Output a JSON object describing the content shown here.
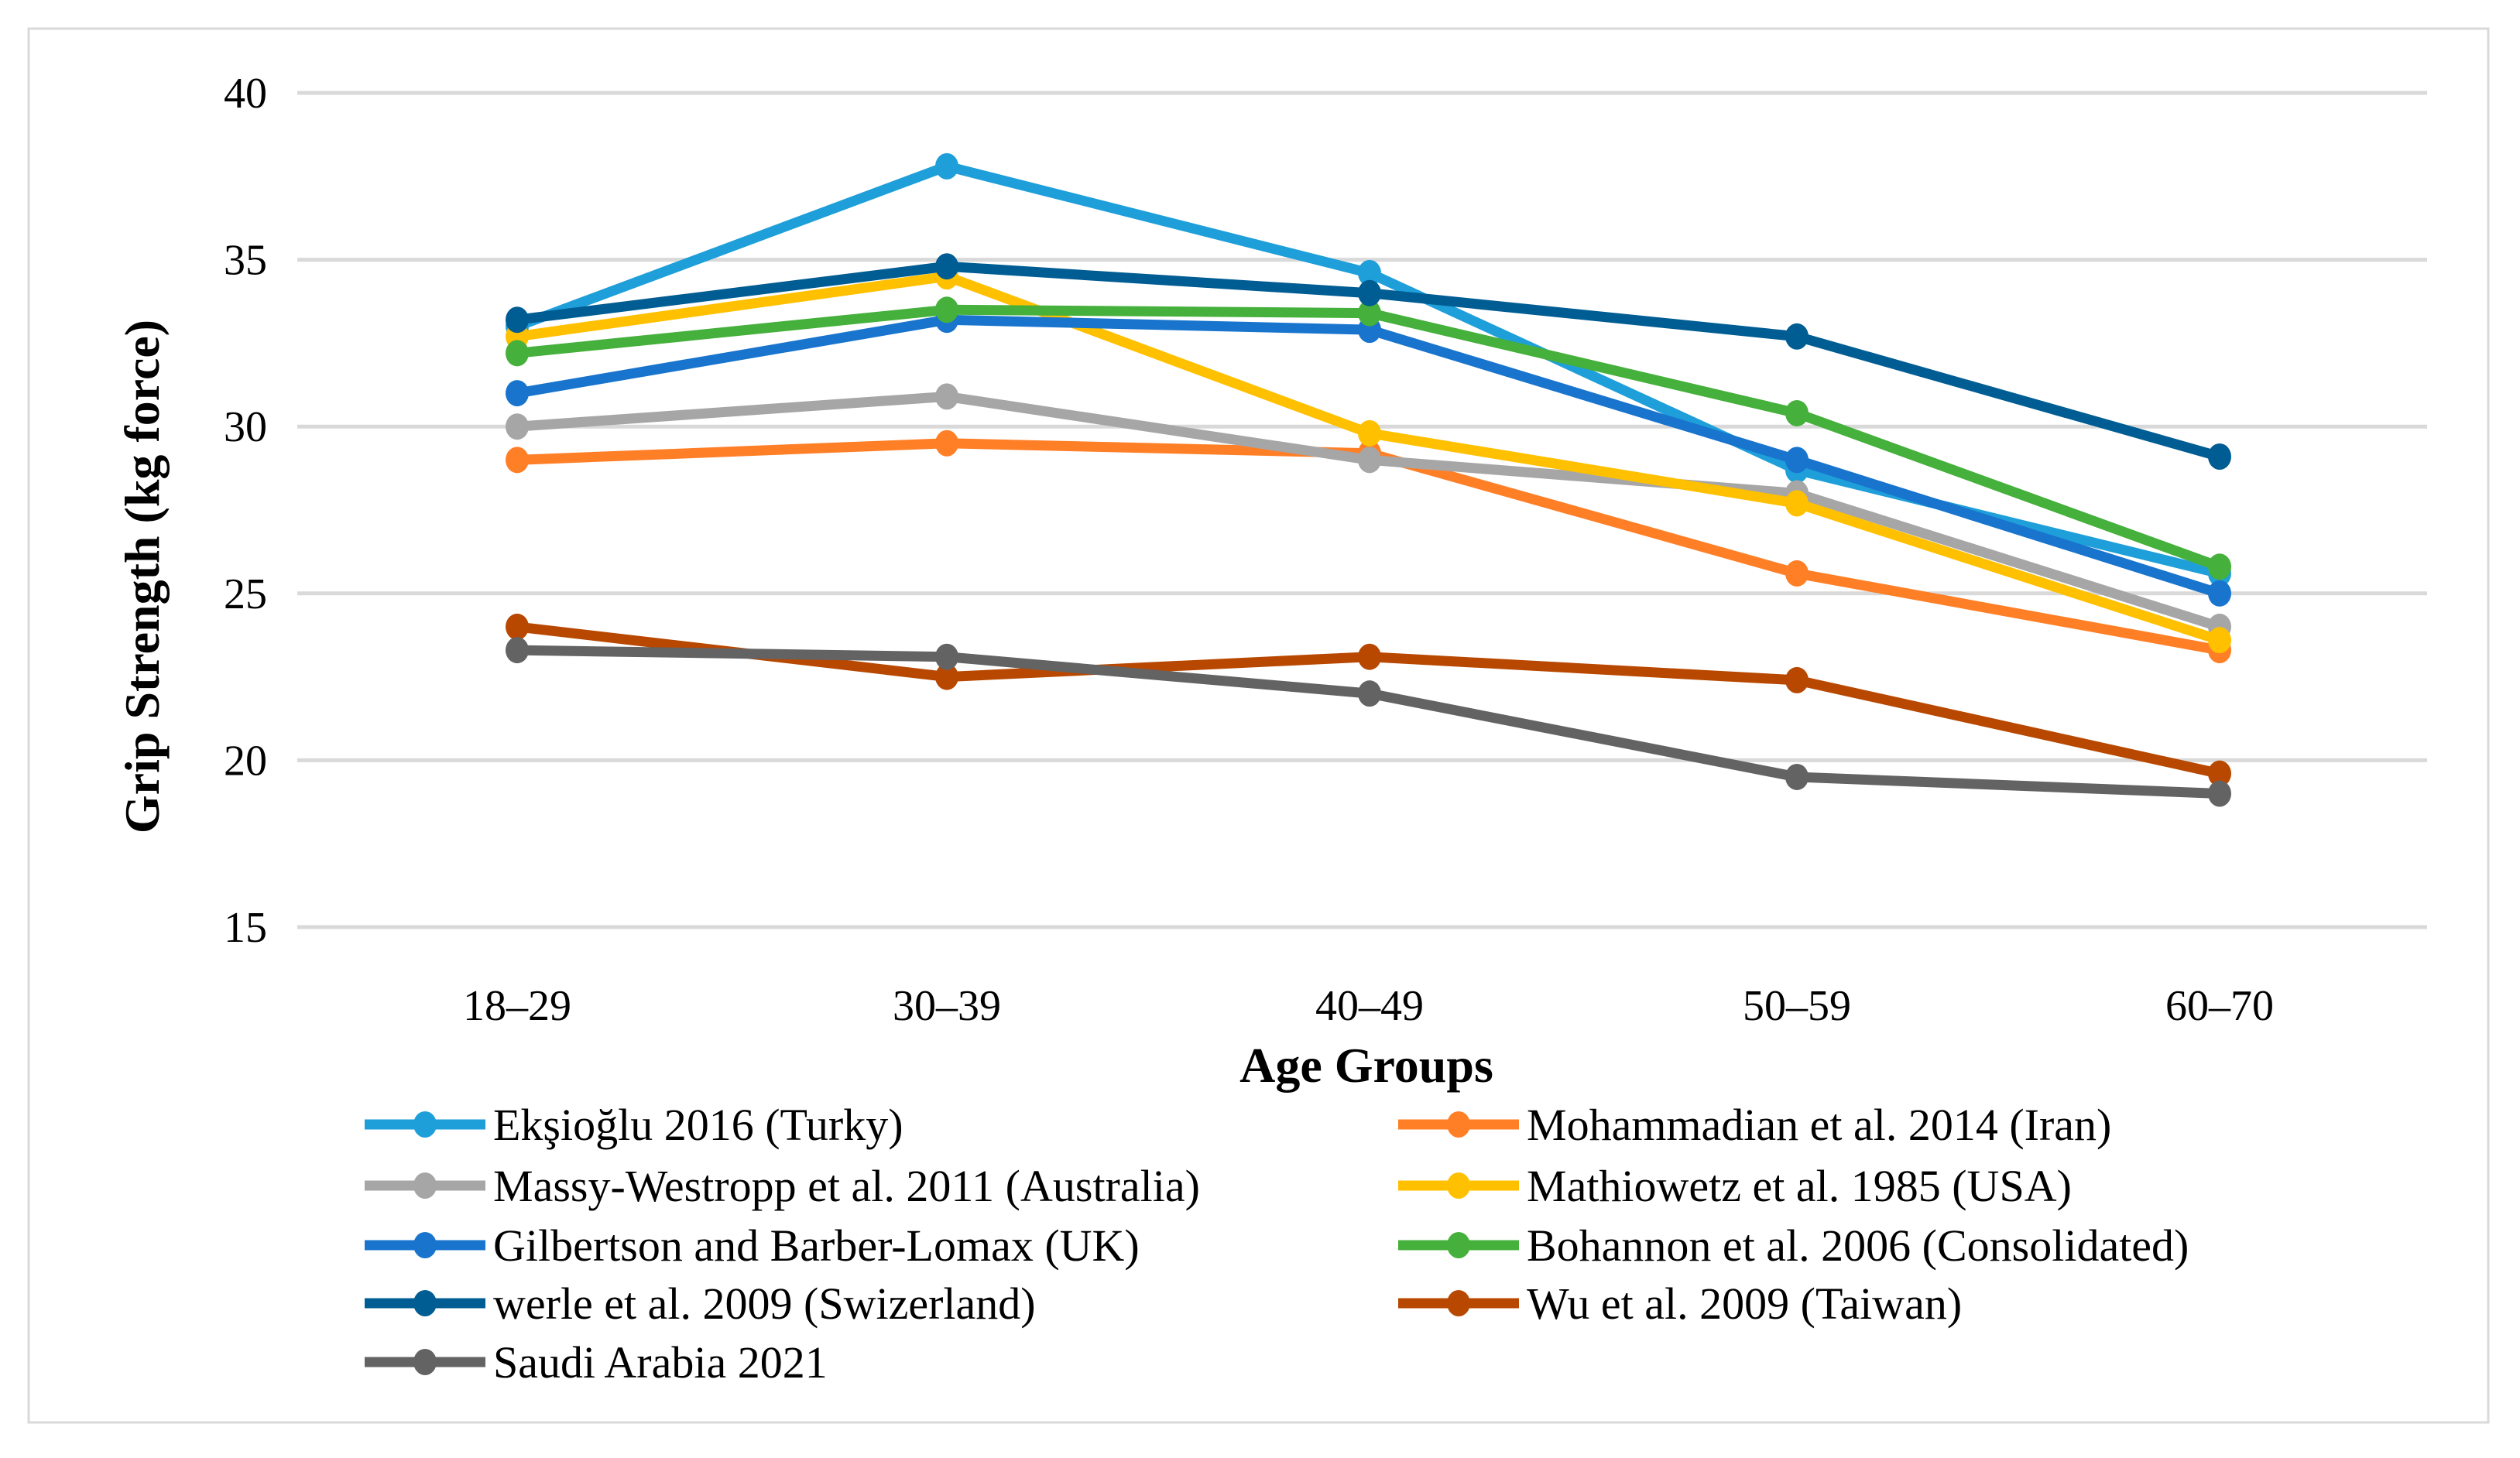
{
  "chart_data": {
    "type": "line",
    "title": "",
    "xlabel": "Age Groups",
    "ylabel": "Grip Strength (kg force)",
    "ylim": [
      15,
      40
    ],
    "yticks": [
      15,
      20,
      25,
      30,
      35,
      40
    ],
    "grid": true,
    "legend_position": "bottom",
    "categories": [
      "18–29",
      "30–39",
      "40–49",
      "50–59",
      "60–70"
    ],
    "series": [
      {
        "name": "Ekşioğlu 2016 (Turky)",
        "color": "#1E9FDA",
        "values": [
          33.0,
          37.8,
          34.6,
          28.7,
          25.6
        ]
      },
      {
        "name": "Mohammadian et al. 2014 (Iran)",
        "color": "#FF7F27",
        "values": [
          29.0,
          29.5,
          29.2,
          25.6,
          23.3
        ]
      },
      {
        "name": "Massy-Westropp et al. 2011 (Australia)",
        "color": "#A6A6A6",
        "values": [
          30.0,
          30.9,
          29.0,
          28.0,
          24.0
        ]
      },
      {
        "name": "Mathiowetz et al. 1985 (USA)",
        "color": "#FFC000",
        "values": [
          32.7,
          34.5,
          29.8,
          27.7,
          23.6
        ]
      },
      {
        "name": "Gilbertson and  Barber-Lomax (UK)",
        "color": "#1874CD",
        "values": [
          31.0,
          33.2,
          32.9,
          29.0,
          25.0
        ]
      },
      {
        "name": "Bohannon et al. 2006 (Consolidated)",
        "color": "#45B03B",
        "values": [
          32.2,
          33.5,
          33.4,
          30.4,
          25.8
        ]
      },
      {
        "name": "werle et al. 2009 (Swizerland)",
        "color": "#005D93",
        "values": [
          33.2,
          34.8,
          34.0,
          32.7,
          29.1
        ]
      },
      {
        "name": "Wu et al. 2009 (Taiwan)",
        "color": "#B84800",
        "values": [
          24.0,
          22.5,
          23.1,
          22.4,
          19.6
        ]
      },
      {
        "name": "Saudi Arabia 2021",
        "color": "#636363",
        "values": [
          23.3,
          23.1,
          22.0,
          19.5,
          19.0
        ]
      }
    ]
  }
}
